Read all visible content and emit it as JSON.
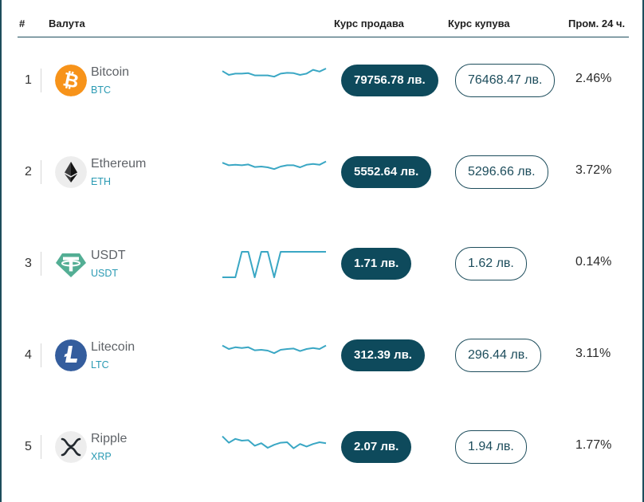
{
  "header": {
    "rank": "#",
    "currency": "Валута",
    "sell": "Курс продава",
    "buy": "Курс купува",
    "change": "Пром. 24 ч."
  },
  "coins": [
    {
      "rank": "1",
      "name": "Bitcoin",
      "code": "BTC",
      "icon": "bitcoin-icon",
      "sell": "79756.78 лв.",
      "buy": "76468.47 лв.",
      "change": "2.46%",
      "spark": [
        0.9,
        0.75,
        0.8,
        0.8,
        0.82,
        0.73,
        0.73,
        0.73,
        0.68,
        0.8,
        0.83,
        0.82,
        0.75,
        0.8,
        0.95,
        0.88,
        1.0
      ]
    },
    {
      "rank": "2",
      "name": "Ethereum",
      "code": "ETH",
      "icon": "ethereum-icon",
      "sell": "5552.64 лв.",
      "buy": "5296.66 лв.",
      "change": "3.72%",
      "spark": [
        0.9,
        0.8,
        0.82,
        0.8,
        0.83,
        0.73,
        0.75,
        0.72,
        0.65,
        0.75,
        0.8,
        0.8,
        0.72,
        0.82,
        0.85,
        0.82,
        0.95
      ]
    },
    {
      "rank": "3",
      "name": "USDT",
      "code": "USDT",
      "icon": "tether-icon",
      "sell": "1.71 лв.",
      "buy": "1.62 лв.",
      "change": "0.14%",
      "spark": [
        0.0,
        0.0,
        0.0,
        1.0,
        1.0,
        0.0,
        1.0,
        1.0,
        0.0,
        1.0,
        1.0,
        1.0,
        1.0,
        1.0,
        1.0,
        1.0,
        1.0
      ]
    },
    {
      "rank": "4",
      "name": "Litecoin",
      "code": "LTC",
      "icon": "litecoin-icon",
      "sell": "312.39 лв.",
      "buy": "296.44 лв.",
      "change": "3.11%",
      "spark": [
        0.92,
        0.78,
        0.85,
        0.82,
        0.85,
        0.73,
        0.75,
        0.72,
        0.62,
        0.75,
        0.78,
        0.8,
        0.7,
        0.78,
        0.82,
        0.78,
        0.92
      ]
    },
    {
      "rank": "5",
      "name": "Ripple",
      "code": "XRP",
      "icon": "xrp-icon",
      "sell": "2.07 лв.",
      "buy": "1.94 лв.",
      "change": "1.77%",
      "spark": [
        0.95,
        0.7,
        0.85,
        0.78,
        0.8,
        0.58,
        0.68,
        0.5,
        0.62,
        0.7,
        0.72,
        0.48,
        0.65,
        0.55,
        0.65,
        0.72,
        0.68
      ]
    }
  ],
  "colors": {
    "accent": "#0e4a5c",
    "sparkline": "#3aa7c4",
    "code_text": "#2a9ab3",
    "bitcoin": "#f7931a",
    "tether": "#53ae94",
    "litecoin": "#345d9d"
  }
}
